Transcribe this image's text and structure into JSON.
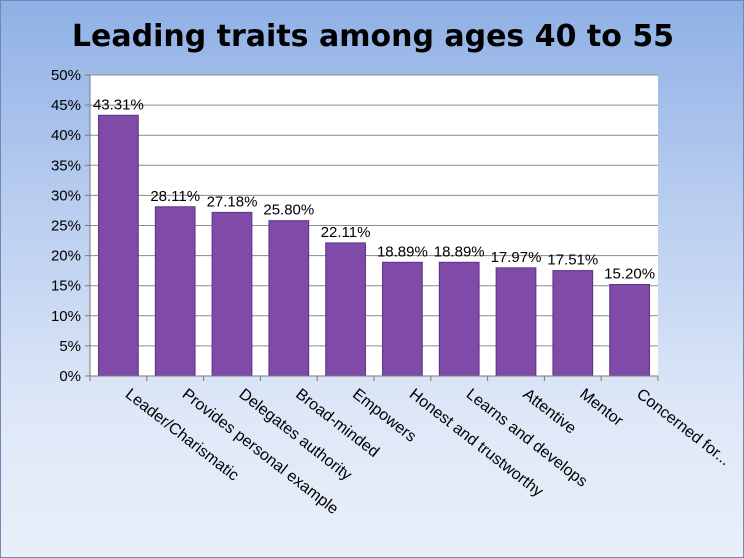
{
  "chart_data": {
    "type": "bar",
    "title": "Leading traits among ages 40 to 55",
    "categories": [
      "Leader/Charismatic",
      "Provides personal example",
      "Delegates authority",
      "Broad-minded",
      "Empowers",
      "Honest and trustworthy",
      "Learns and develops",
      "Attentive",
      "Mentor",
      "Concerned for..."
    ],
    "values": [
      43.31,
      28.11,
      27.18,
      25.8,
      22.11,
      18.89,
      18.89,
      17.97,
      17.51,
      15.2
    ],
    "data_labels": [
      "43.31%",
      "28.11%",
      "27.18%",
      "25.80%",
      "22.11%",
      "18.89%",
      "18.89%",
      "17.97%",
      "17.51%",
      "15.20%"
    ],
    "y_ticks": [
      "0%",
      "5%",
      "10%",
      "15%",
      "20%",
      "25%",
      "30%",
      "35%",
      "40%",
      "45%",
      "50%"
    ],
    "ylim": [
      0,
      50
    ],
    "grid": true,
    "legend": "none",
    "colors": {
      "bar": "#7f4aa8",
      "bar_edge": "#5e3384",
      "plot_bg": "#ffffff",
      "grid": "#8c8c8c"
    }
  }
}
